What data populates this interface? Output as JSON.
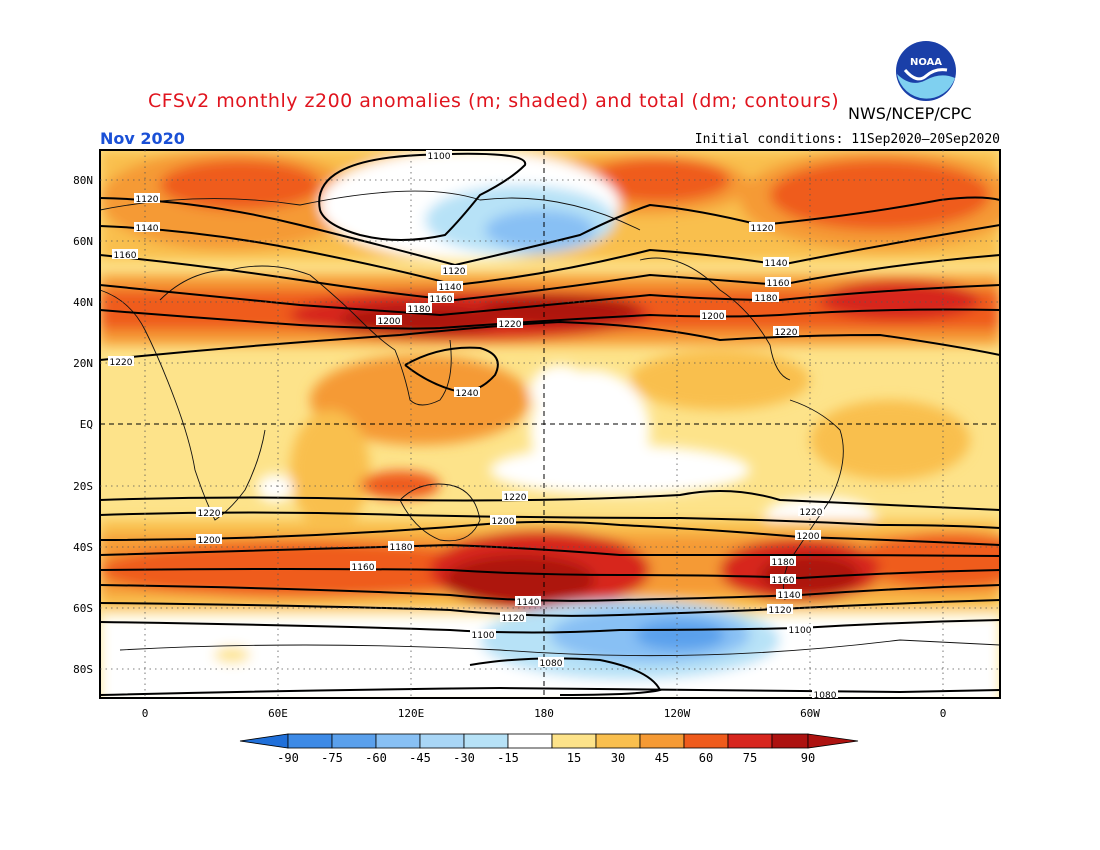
{
  "header": {
    "title": "CFSv2 monthly z200 anomalies (m; shaded) and total (dm; contours)",
    "agency": "NWS/NCEP/CPC",
    "month": "Nov 2020",
    "initial_conditions": "Initial conditions: 11Sep2020–20Sep2020",
    "logo_icon": "noaa-logo-icon"
  },
  "map": {
    "lat_labels": [
      "80N",
      "60N",
      "40N",
      "20N",
      "EQ",
      "20S",
      "40S",
      "60S",
      "80S"
    ],
    "lon_labels": [
      "0",
      "60E",
      "120E",
      "180",
      "120W",
      "60W",
      "0"
    ],
    "contour_labels": [
      "1100",
      "1120",
      "1140",
      "1160",
      "1180",
      "1200",
      "1220",
      "1240",
      "1080",
      "1120",
      "1140",
      "1160",
      "1180",
      "1200",
      "1220",
      "1220",
      "1120",
      "1140",
      "1160",
      "1180",
      "1200",
      "1220",
      "1220",
      "1200",
      "1180",
      "1160",
      "1140",
      "1120",
      "1100",
      "1220",
      "1200",
      "1180",
      "1160",
      "1140",
      "1120",
      "1100",
      "1080"
    ],
    "colors": {
      "neg90": "#1f6fd9",
      "neg75": "#3d8ae6",
      "neg60": "#5aa0ec",
      "neg45": "#88c0f4",
      "neg30": "#b7e2f7",
      "neutral": "#ffffff",
      "pos15": "#fde38a",
      "pos30": "#f9bf4e",
      "pos45": "#f59a34",
      "pos60": "#ef5b1c",
      "pos75": "#d7261e",
      "pos90": "#ad1210"
    }
  },
  "colorbar": {
    "tick_labels": [
      "-90",
      "-75",
      "-60",
      "-45",
      "-30",
      "-15",
      "15",
      "30",
      "45",
      "60",
      "75",
      "90"
    ]
  }
}
